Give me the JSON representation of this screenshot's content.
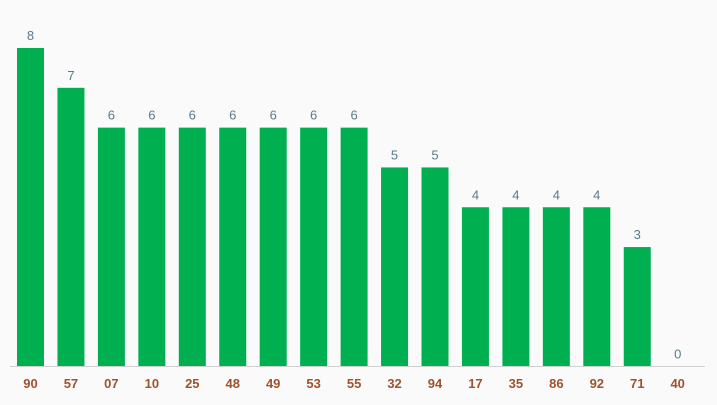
{
  "colors": {
    "bar": "#00b050",
    "value_label": "#5a7a8c",
    "tick_label": "#a0522d",
    "baseline": "#d0d0d0",
    "background": "#fafafa"
  },
  "chart_data": {
    "type": "bar",
    "title": "",
    "xlabel": "",
    "ylabel": "",
    "categories": [
      "90",
      "57",
      "07",
      "10",
      "25",
      "48",
      "49",
      "53",
      "55",
      "32",
      "94",
      "17",
      "35",
      "86",
      "92",
      "71",
      "40"
    ],
    "values": [
      8,
      7,
      6,
      6,
      6,
      6,
      6,
      6,
      6,
      5,
      5,
      4,
      4,
      4,
      4,
      3,
      0
    ],
    "ylim": [
      0,
      8
    ],
    "grid": false,
    "legend": "none"
  }
}
